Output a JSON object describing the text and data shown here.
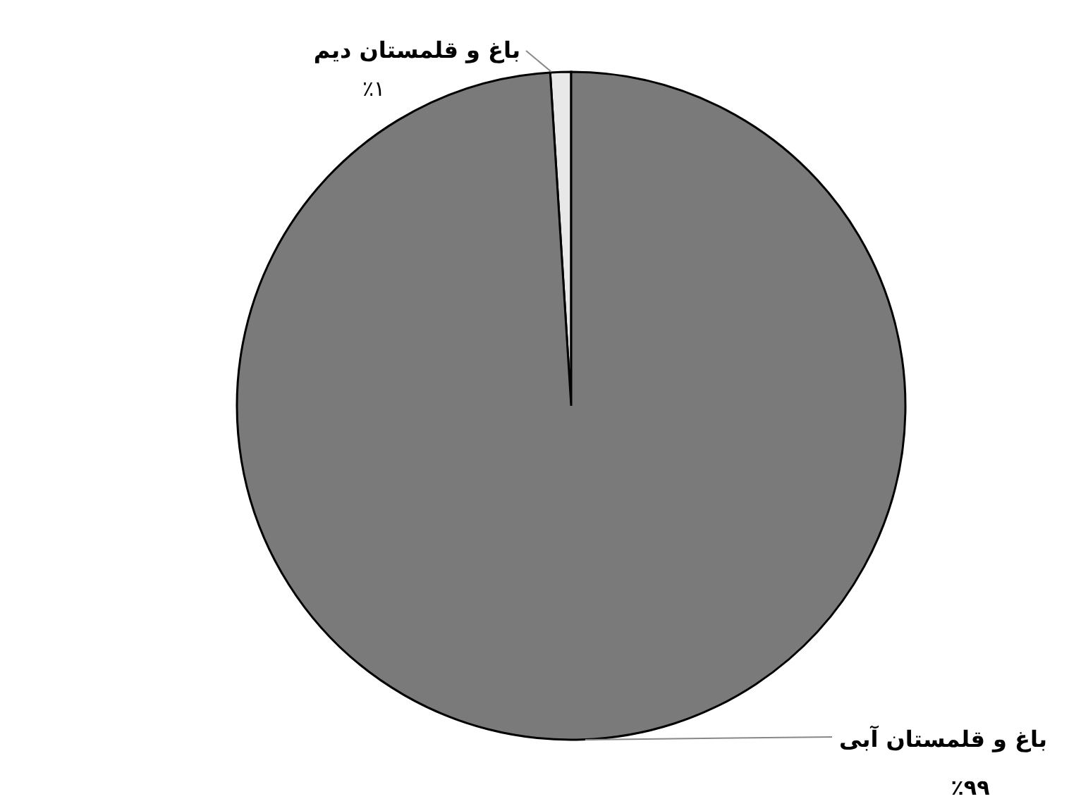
{
  "chart_data": {
    "type": "pie",
    "categories": [
      "باغ و قلمستان دیم",
      "باغ و قلمستان آبی"
    ],
    "values": [
      1,
      99
    ],
    "colors": [
      "#e8e8e8",
      "#7a7a7a"
    ],
    "value_labels": [
      "٪۱",
      "٪۹۹"
    ]
  }
}
